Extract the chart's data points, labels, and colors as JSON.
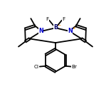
{
  "bg_color": "#ffffff",
  "bond_color": "#000000",
  "N_color": "#0000cc",
  "B_color": "#000066",
  "line_width": 1.3,
  "fig_size": [
    1.52,
    1.52
  ],
  "dpi": 100,
  "orange": "#ff8c00",
  "xlim": [
    0,
    10
  ],
  "ylim": [
    0,
    10
  ]
}
